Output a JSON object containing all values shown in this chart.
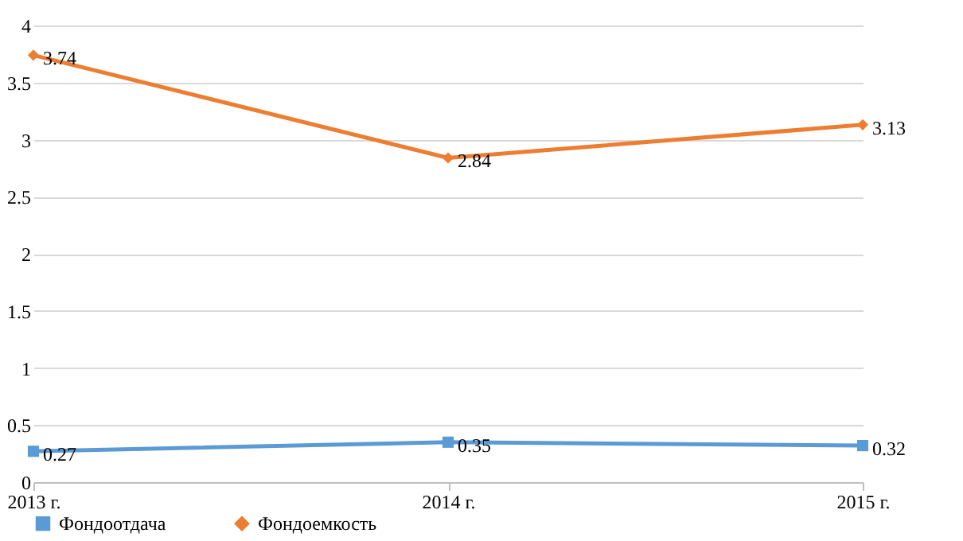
{
  "chart_data": {
    "type": "line",
    "categories": [
      "2013 г.",
      "2014 г.",
      "2015 г."
    ],
    "series": [
      {
        "name": "Фондоотдача",
        "color": "#5b9bd5",
        "marker": "square",
        "values": [
          0.27,
          0.35,
          0.32
        ]
      },
      {
        "name": "Фондоемкость",
        "color": "#ed7d31",
        "marker": "diamond",
        "values": [
          3.74,
          2.84,
          3.13
        ]
      }
    ],
    "ylim": [
      0,
      4
    ],
    "yticks": [
      0,
      0.5,
      1,
      1.5,
      2,
      2.5,
      3,
      3.5,
      4
    ],
    "grid": "y",
    "legend": "bottom",
    "data_labels": true,
    "line_style": "solid"
  }
}
